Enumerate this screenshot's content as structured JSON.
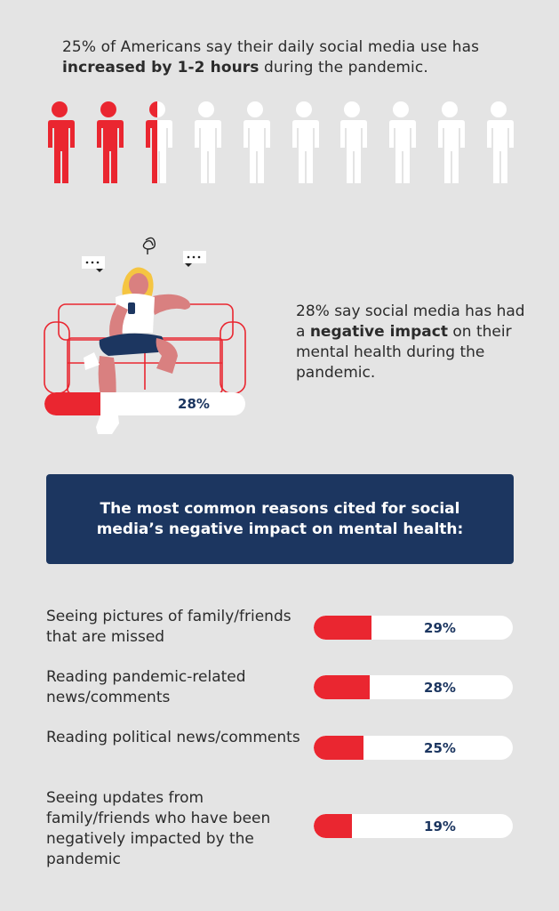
{
  "intro": {
    "prefix": "25% of Americans say their daily social media use has ",
    "bold": "increased by 1-2 hours",
    "suffix": " during the pandemic.",
    "share_filled": 0.25,
    "people_count": 10
  },
  "mental_health": {
    "prefix": "28% say social media has had a ",
    "bold": "negative impact",
    "suffix": " on their mental health during the pandemic.",
    "bar_value": 0.28,
    "bar_label": "28%"
  },
  "banner": {
    "title": "The most common reasons cited for social media’s negative impact on mental health:"
  },
  "reasons": [
    {
      "label": "Seeing pictures of family/friends that are missed",
      "value": 0.29,
      "pct": "29%"
    },
    {
      "label": "Reading pandemic-related news/comments",
      "value": 0.28,
      "pct": "28%"
    },
    {
      "label": "Reading political news/comments",
      "value": 0.25,
      "pct": "25%"
    },
    {
      "label": "Seeing updates from family/friends who have been negatively impacted by the pandemic",
      "value": 0.19,
      "pct": "19%"
    }
  ],
  "colors": {
    "background": "#e4e4e4",
    "accent_red": "#ea2630",
    "navy": "#1c3660",
    "bar_track": "#ffffff"
  }
}
